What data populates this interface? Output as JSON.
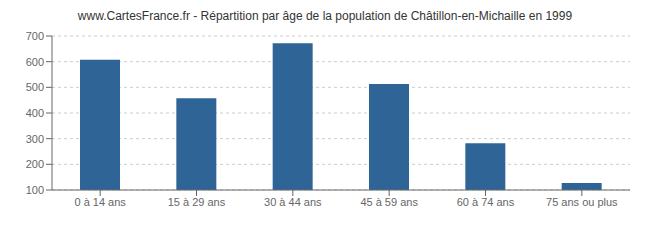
{
  "chart_data": {
    "type": "bar",
    "title": "www.CartesFrance.fr - Répartition par âge de la population de Châtillon-en-Michaille en 1999",
    "categories": [
      "0 à 14 ans",
      "15 à 29 ans",
      "30 à 44 ans",
      "45 à 59 ans",
      "60 à 74 ans",
      "75 ans ou plus"
    ],
    "values": [
      607,
      457,
      672,
      513,
      282,
      127
    ],
    "color": "#2e6496",
    "ylim": [
      100,
      700
    ],
    "yticks": [
      100,
      200,
      300,
      400,
      500,
      600,
      700
    ],
    "grid": true
  }
}
